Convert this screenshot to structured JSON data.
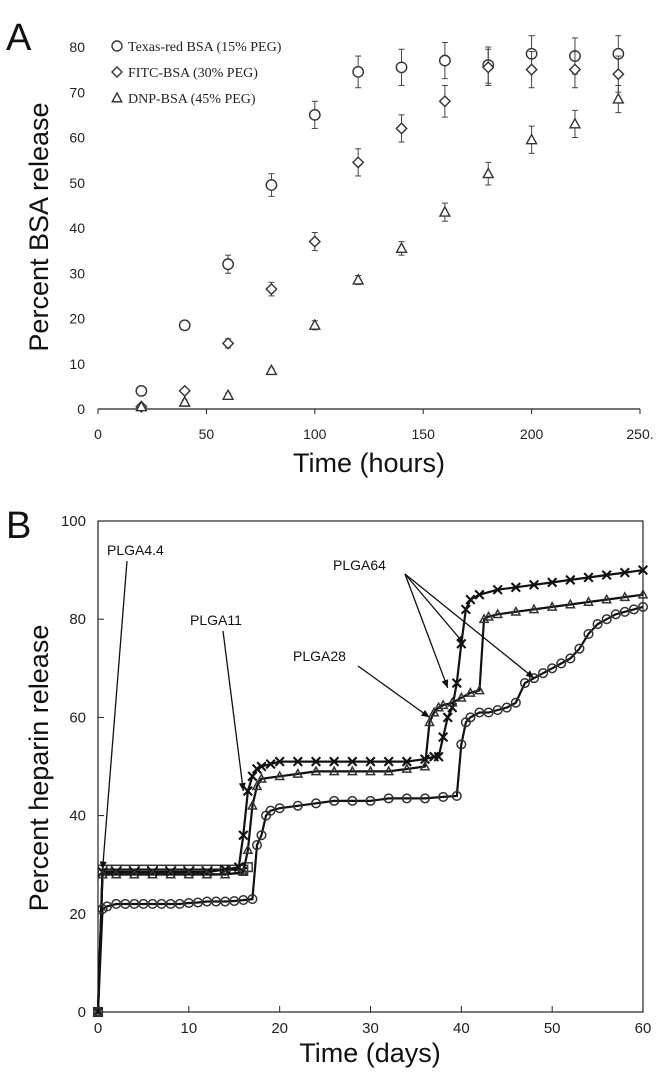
{
  "chart_data": [
    {
      "panel": "A",
      "type": "scatter",
      "xlabel": "Time (hours)",
      "ylabel": "Percent BSA release",
      "xlim": [
        0,
        250
      ],
      "ylim": [
        0,
        80
      ],
      "x_ticks": [
        0,
        50,
        100,
        150,
        200,
        250
      ],
      "x_tick_labels": [
        "0",
        "50",
        "100",
        "150",
        "200",
        "250."
      ],
      "y_ticks": [
        0,
        10,
        20,
        30,
        40,
        50,
        60,
        70,
        80
      ],
      "grid": false,
      "legend_position": "top-left",
      "series": [
        {
          "name": "Texas-red BSA (15% PEG)",
          "marker": "circle",
          "x": [
            20,
            40,
            60,
            80,
            100,
            120,
            140,
            160,
            180,
            200,
            220,
            240
          ],
          "y": [
            4,
            18.5,
            32,
            49.5,
            65,
            74.5,
            75.5,
            77,
            76,
            78.5,
            78,
            78.5
          ],
          "err": [
            0.5,
            1,
            2,
            2.5,
            3,
            3.5,
            4,
            4,
            4,
            4,
            4,
            4
          ]
        },
        {
          "name": "FITC-BSA (30% PEG)",
          "marker": "diamond",
          "x": [
            20,
            40,
            60,
            80,
            100,
            120,
            140,
            160,
            180,
            200,
            220,
            240
          ],
          "y": [
            0.5,
            4,
            14.5,
            26.5,
            37,
            54.5,
            62,
            68,
            75.5,
            75,
            75,
            74
          ],
          "err": [
            0.5,
            0.5,
            1,
            1.5,
            2,
            3,
            3,
            3.5,
            4,
            4,
            4,
            4
          ]
        },
        {
          "name": "DNP-BSA (45% PEG)",
          "marker": "triangle",
          "x": [
            20,
            40,
            60,
            80,
            100,
            120,
            140,
            160,
            180,
            200,
            220,
            240
          ],
          "y": [
            0.5,
            1.5,
            3,
            8.5,
            18.5,
            28.5,
            35.5,
            43.5,
            52,
            59.5,
            63,
            68.5
          ],
          "err": [
            0.5,
            0.5,
            0.5,
            0.5,
            1,
            1,
            1.5,
            2,
            2.5,
            3,
            3,
            3
          ]
        }
      ]
    },
    {
      "panel": "B",
      "type": "line",
      "xlabel": "Time (days)",
      "ylabel": "Percent heparin release",
      "xlim": [
        0,
        60
      ],
      "ylim": [
        0,
        100
      ],
      "x_ticks": [
        0,
        10,
        20,
        30,
        40,
        50,
        60
      ],
      "y_ticks": [
        0,
        20,
        40,
        60,
        80,
        100
      ],
      "grid": false,
      "series": [
        {
          "name": "PLGA4.4",
          "marker": "square",
          "x": [
            0,
            0.5,
            1,
            2,
            3,
            4,
            5,
            6,
            7,
            8,
            9,
            10,
            11,
            12,
            13,
            14,
            15,
            16,
            16.5
          ],
          "y": [
            0,
            29,
            29,
            29,
            29,
            29,
            29,
            29,
            29,
            29,
            29,
            29,
            29,
            29,
            29,
            29,
            29,
            29,
            29.5
          ]
        },
        {
          "name": "PLGA11",
          "marker": "x",
          "x": [
            0,
            0.5,
            2,
            4,
            6,
            8,
            10,
            12,
            14,
            15.5,
            16,
            16.5,
            17,
            17.5,
            18,
            19,
            20,
            22,
            24,
            26,
            28,
            30,
            32,
            34,
            36,
            37,
            37.5,
            38,
            38.5,
            39,
            39.5,
            40,
            40.5,
            41,
            42,
            44,
            46,
            48,
            50,
            52,
            54,
            56,
            58,
            60
          ],
          "y": [
            0,
            28.5,
            28.5,
            28.5,
            28.5,
            28.5,
            28.5,
            28.5,
            29,
            29.5,
            36,
            45,
            48,
            49.5,
            50,
            50.5,
            51,
            51,
            51,
            51,
            51,
            51,
            51,
            51,
            51.5,
            52,
            52,
            56,
            60,
            62,
            67,
            75,
            82,
            84,
            85,
            86,
            86.5,
            87,
            87.5,
            88,
            88.5,
            89,
            89.5,
            90
          ]
        },
        {
          "name": "PLGA28",
          "marker": "triangle",
          "x": [
            0,
            0.5,
            2,
            4,
            6,
            8,
            10,
            12,
            14,
            16,
            16.5,
            17,
            17.5,
            18,
            20,
            22,
            24,
            26,
            28,
            30,
            32,
            34,
            36,
            36.5,
            37,
            37.5,
            38,
            39,
            40,
            41,
            42,
            42.5,
            43,
            44,
            46,
            48,
            50,
            52,
            54,
            56,
            58,
            60
          ],
          "y": [
            0,
            28,
            28,
            28,
            28,
            28,
            28,
            28,
            28,
            28.5,
            33,
            42,
            46,
            47.5,
            48,
            48.5,
            49,
            49,
            49,
            49,
            49,
            49.5,
            50,
            59,
            61,
            62,
            62.5,
            63,
            64,
            65,
            65.5,
            80,
            80.5,
            81,
            81.5,
            82,
            82.5,
            83,
            83.5,
            84,
            84.5,
            85
          ]
        },
        {
          "name": "PLGA64",
          "marker": "circle",
          "x": [
            0,
            0.5,
            1,
            2,
            3,
            4,
            5,
            6,
            7,
            8,
            9,
            10,
            11,
            12,
            13,
            14,
            15,
            16,
            17,
            17.5,
            18,
            18.5,
            19,
            20,
            22,
            24,
            26,
            28,
            30,
            32,
            34,
            36,
            38,
            39.5,
            40,
            40.5,
            41,
            42,
            43,
            44,
            45,
            46,
            47,
            48,
            49,
            50,
            51,
            52,
            53,
            54,
            55,
            56,
            57,
            58,
            59,
            60
          ],
          "y": [
            0,
            21,
            21.5,
            22,
            22,
            22,
            22,
            22,
            22,
            22,
            22,
            22.2,
            22.3,
            22.5,
            22.5,
            22.5,
            22.6,
            22.8,
            23,
            34,
            36,
            40,
            41,
            41.5,
            42,
            42.5,
            43,
            43,
            43,
            43.5,
            43.5,
            43.5,
            43.8,
            44,
            54.5,
            59,
            60,
            61,
            61,
            61.5,
            62,
            63,
            67,
            68,
            69,
            70,
            71,
            72,
            74,
            77,
            79,
            80,
            81,
            81.5,
            82,
            82.5
          ]
        }
      ],
      "annotations": [
        {
          "text": "PLGA4.4",
          "target": [
            0.5,
            29
          ]
        },
        {
          "text": "PLGA11",
          "target": [
            16,
            45
          ]
        },
        {
          "text": "PLGA28",
          "target": [
            36.5,
            60
          ]
        },
        {
          "text": "PLGA64",
          "targets": [
            [
              38.5,
              66
            ],
            [
              40.3,
              75
            ],
            [
              48,
              68
            ]
          ]
        }
      ]
    }
  ]
}
